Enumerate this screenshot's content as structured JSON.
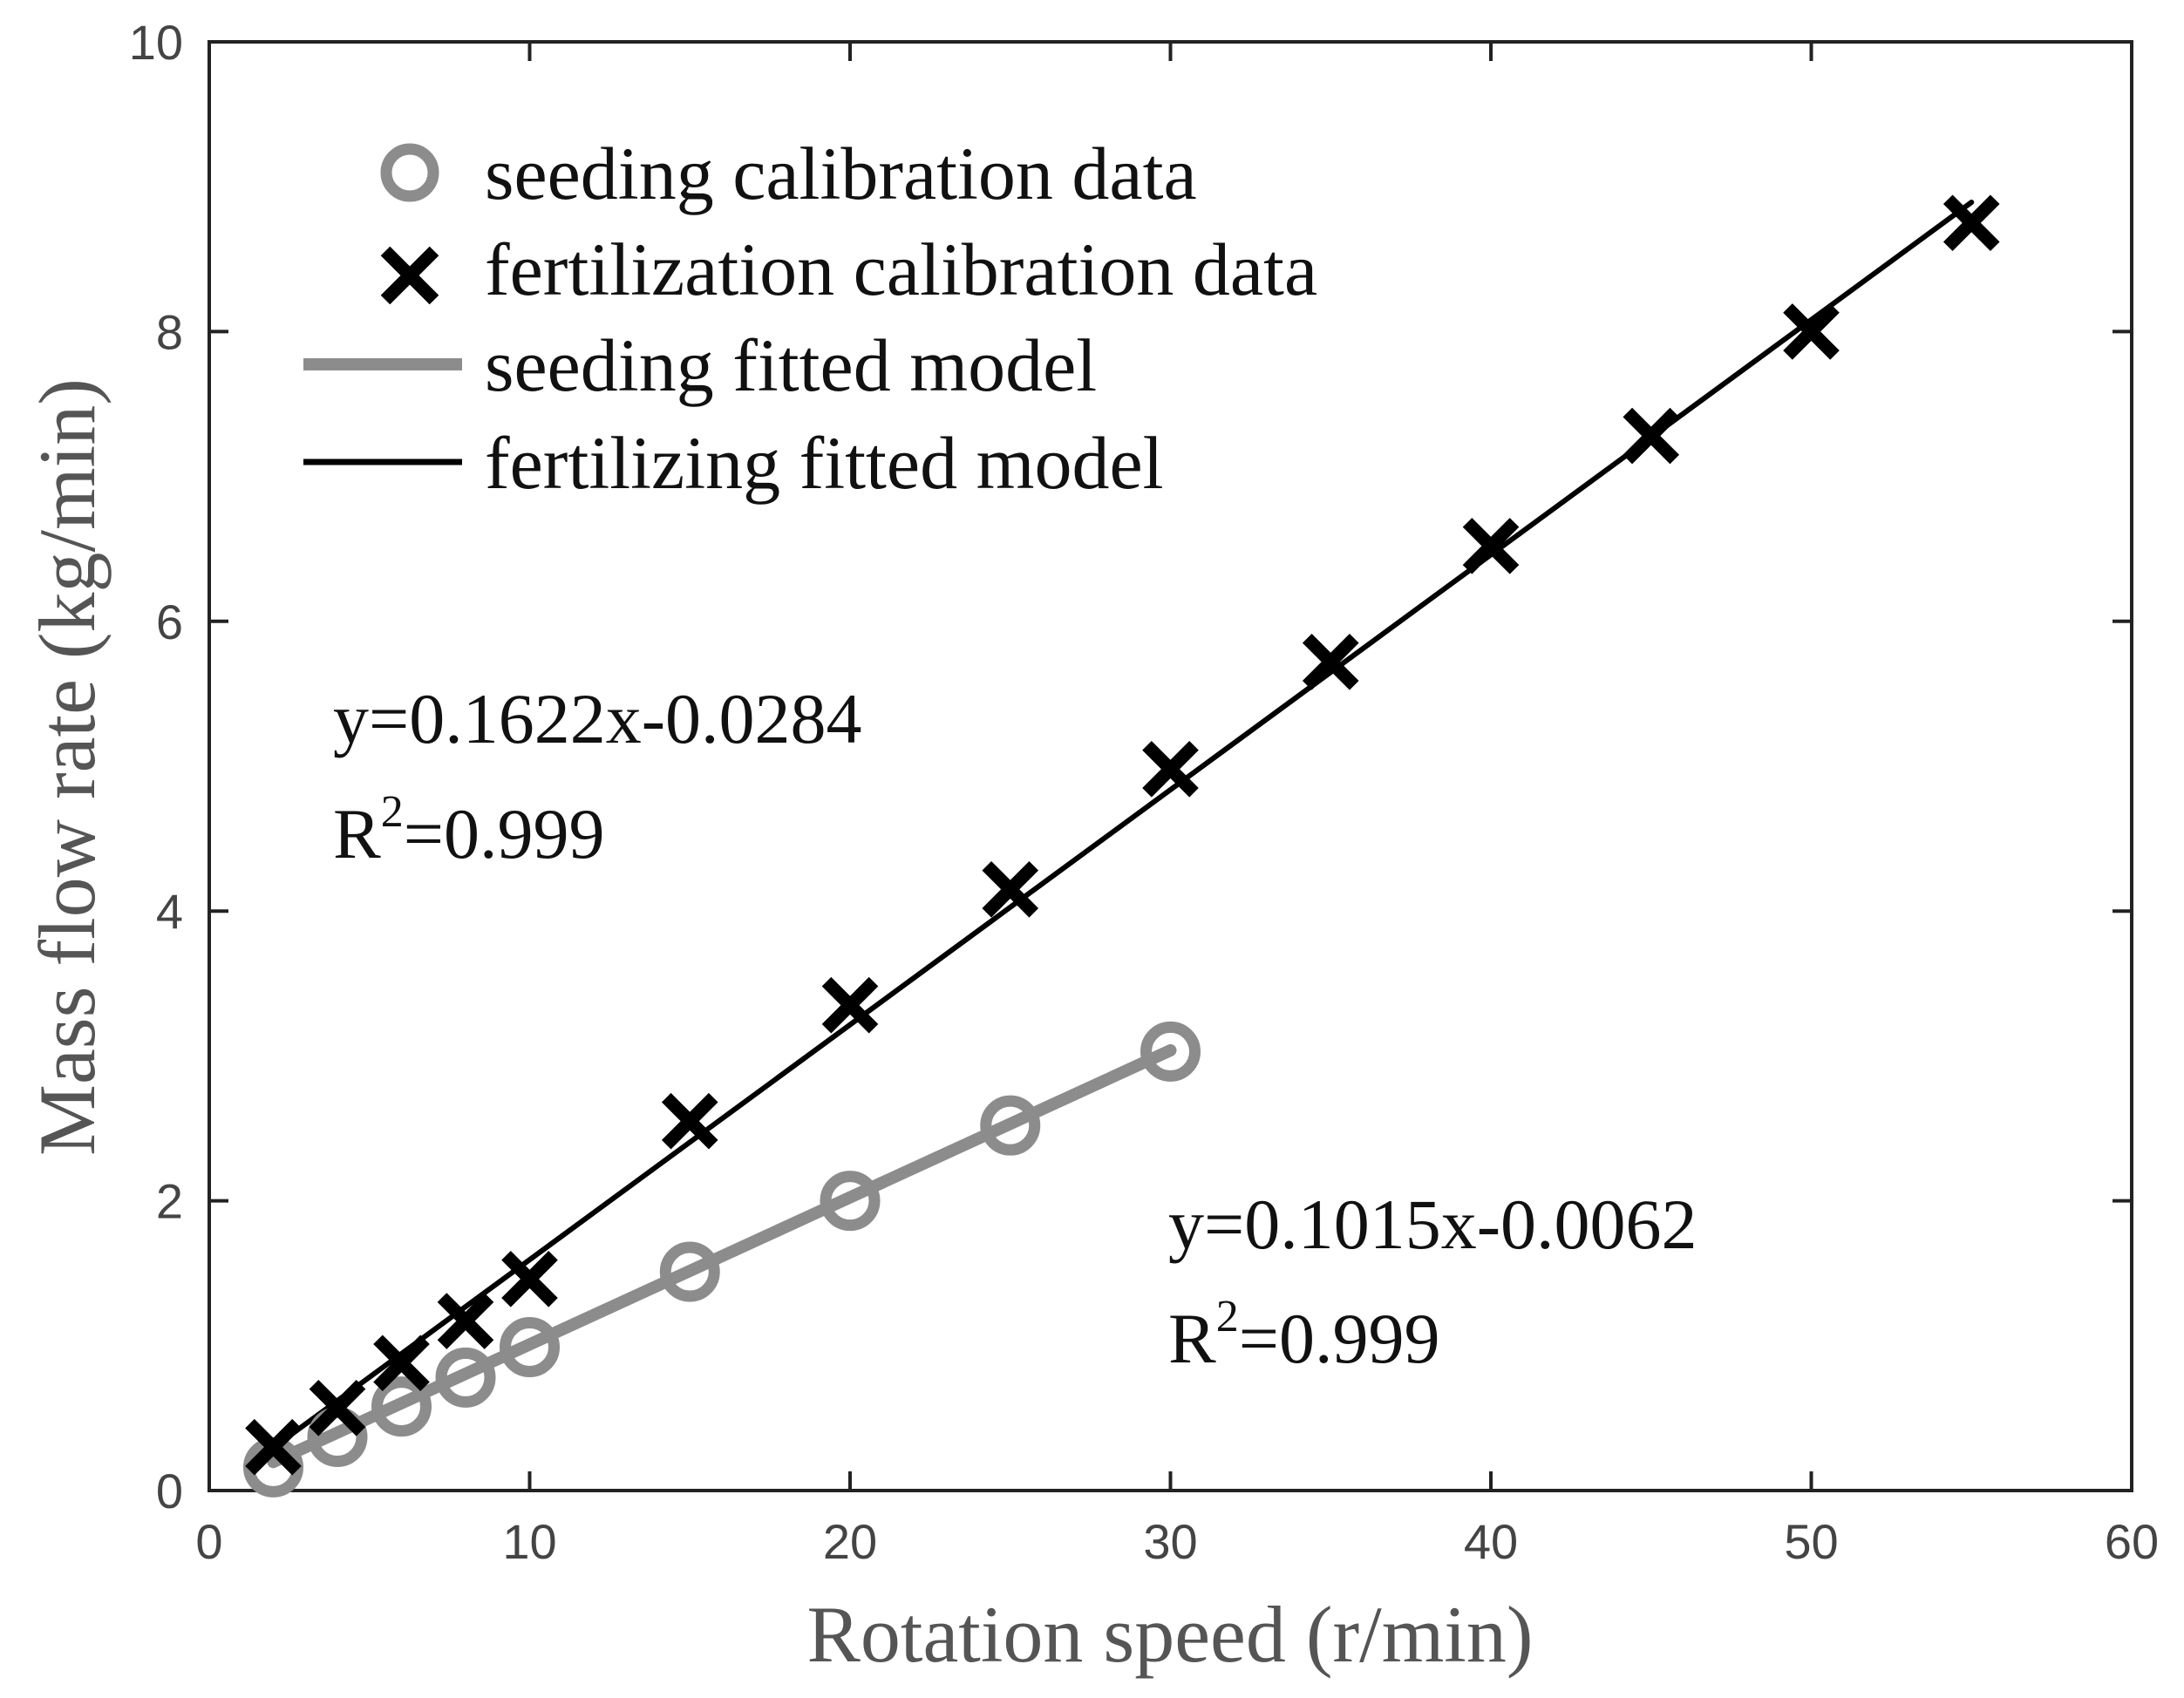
{
  "chart_data": {
    "type": "scatter",
    "xlabel": "Rotation speed (r/min)",
    "ylabel": "Mass flow rate (kg/min)",
    "xlim": [
      0,
      60
    ],
    "ylim": [
      0,
      10
    ],
    "xticks": [
      0,
      10,
      20,
      30,
      40,
      50,
      60
    ],
    "yticks": [
      0,
      2,
      4,
      6,
      8,
      10
    ],
    "grid": false,
    "legend_position": "top-left",
    "series": [
      {
        "name": "seeding calibration data",
        "kind": "marker-circle",
        "color": "#8c8c8c",
        "x": [
          2,
          4,
          6,
          8,
          10,
          15,
          20,
          25,
          30
        ],
        "y": [
          0.16,
          0.37,
          0.58,
          0.78,
          0.99,
          1.51,
          2.0,
          2.52,
          3.03
        ]
      },
      {
        "name": "fertilization calibration data",
        "kind": "marker-x",
        "color": "#000000",
        "x": [
          2,
          4,
          6,
          8,
          10,
          15,
          20,
          25,
          30,
          35,
          40,
          45,
          50,
          55
        ],
        "y": [
          0.3,
          0.57,
          0.88,
          1.17,
          1.46,
          2.55,
          3.35,
          4.15,
          4.98,
          5.72,
          6.52,
          7.28,
          8.0,
          8.75
        ]
      },
      {
        "name": "seeding fitted model",
        "kind": "line",
        "color": "#8c8c8c",
        "x": [
          2,
          30
        ],
        "y": [
          0.1968,
          3.0388
        ]
      },
      {
        "name": "fertilizing fitted model",
        "kind": "line",
        "color": "#000000",
        "x": [
          2,
          55
        ],
        "y": [
          0.296,
          8.8926
        ]
      }
    ],
    "annotations": {
      "fert_equation": "y=0.1622x-0.0284",
      "fert_r2_base": "R",
      "fert_r2_exp": "2",
      "fert_r2_value": "=0.999",
      "seed_equation": "y=0.1015x-0.0062",
      "seed_r2_base": "R",
      "seed_r2_exp": "2",
      "seed_r2_value": "=0.999"
    }
  }
}
